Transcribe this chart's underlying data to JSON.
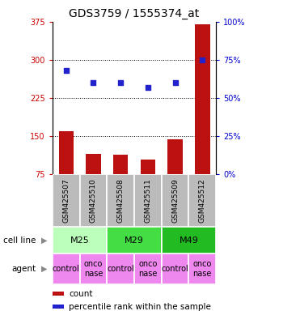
{
  "title": "GDS3759 / 1555374_at",
  "samples": [
    "GSM425507",
    "GSM425510",
    "GSM425508",
    "GSM425511",
    "GSM425509",
    "GSM425512"
  ],
  "bar_values": [
    160,
    115,
    113,
    103,
    143,
    370
  ],
  "scatter_values": [
    68,
    60,
    60,
    57,
    60,
    75
  ],
  "ylim_left": [
    75,
    375
  ],
  "ylim_right": [
    0,
    100
  ],
  "yticks_left": [
    75,
    150,
    225,
    300,
    375
  ],
  "yticks_right": [
    0,
    25,
    50,
    75,
    100
  ],
  "hgrid_at": [
    150,
    225,
    300
  ],
  "bar_color": "#bb1111",
  "scatter_color": "#2222cc",
  "cell_line_groups": [
    {
      "label": "M25",
      "start": 0,
      "end": 1,
      "color": "#bbffbb"
    },
    {
      "label": "M29",
      "start": 2,
      "end": 3,
      "color": "#44dd44"
    },
    {
      "label": "M49",
      "start": 4,
      "end": 5,
      "color": "#22bb22"
    }
  ],
  "agent_labels": [
    "control",
    "onco\nnase",
    "control",
    "onco\nnase",
    "control",
    "onco\nnase"
  ],
  "agent_color": "#ee88ee",
  "sample_bg_color": "#bbbbbb",
  "legend_bar_label": "count",
  "legend_scatter_label": "percentile rank within the sample",
  "left_tick_color": "#cc0000",
  "right_tick_color": "#0000cc",
  "title_fontsize": 10,
  "tick_fontsize": 7,
  "sample_fontsize": 6.5,
  "cell_fontsize": 8,
  "agent_fontsize": 7,
  "legend_fontsize": 7.5,
  "rowlabel_fontsize": 7.5
}
